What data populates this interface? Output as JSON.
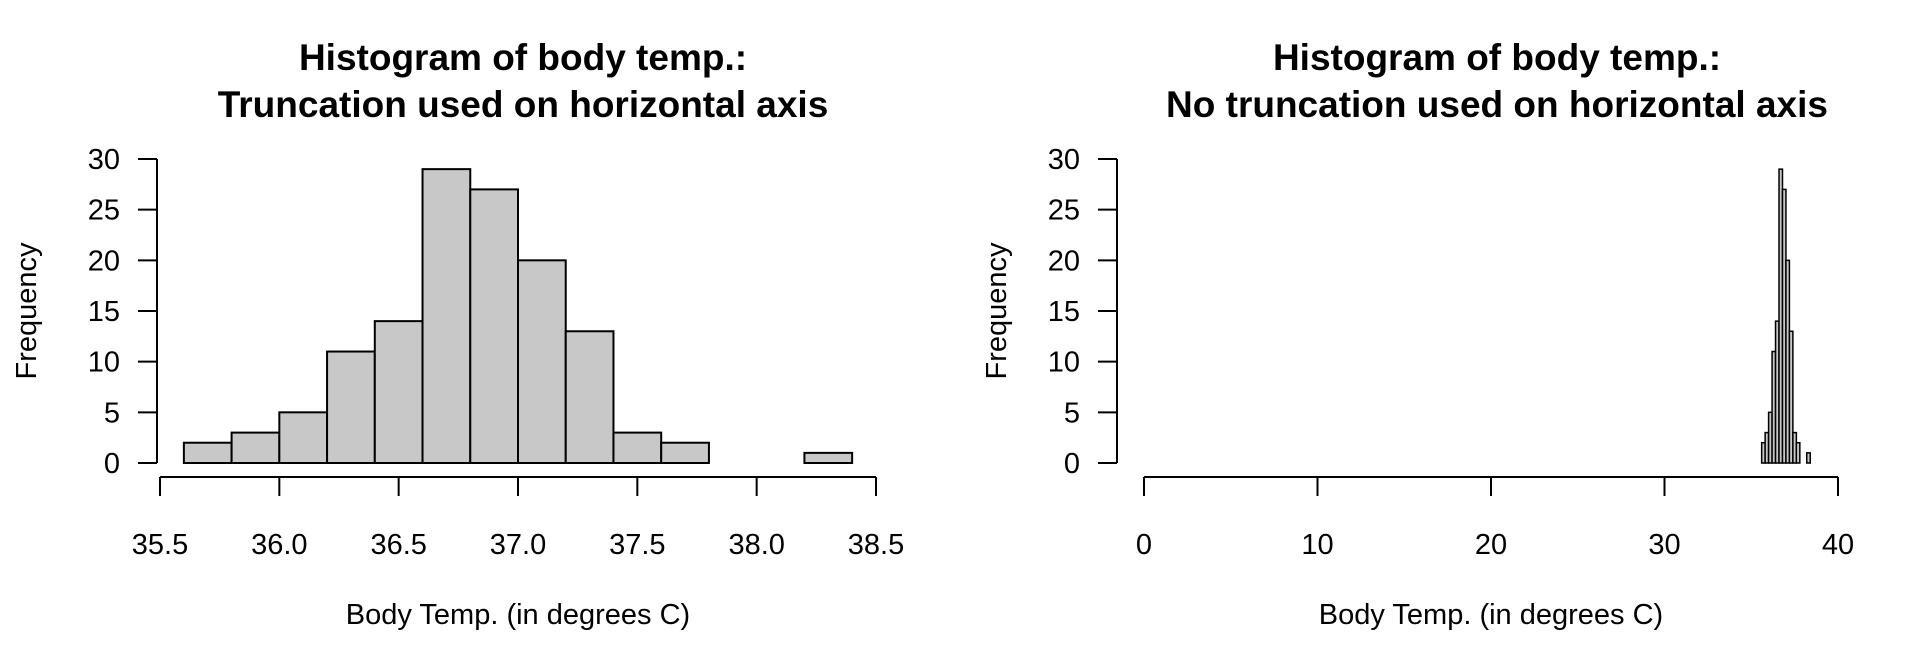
{
  "colors": {
    "bar_fill": "#c8c8c8",
    "bar_stroke": "#000000",
    "axis": "#000000",
    "background": "#ffffff"
  },
  "chart_data": [
    {
      "type": "bar",
      "subtype": "histogram",
      "title": "Histogram of body temp.:\nTruncation used on horizontal axis",
      "title_lines": [
        "Histogram of body temp.:",
        "Truncation used on horizontal axis"
      ],
      "xlabel": "Body Temp. (in degrees C)",
      "ylabel": "Frequency",
      "bin_edges": [
        35.6,
        35.8,
        36.0,
        36.2,
        36.4,
        36.6,
        36.8,
        37.0,
        37.2,
        37.4,
        37.6,
        37.8,
        38.0,
        38.2,
        38.4
      ],
      "values": [
        2,
        3,
        5,
        11,
        14,
        29,
        27,
        20,
        13,
        3,
        2,
        0,
        0,
        1
      ],
      "xlim": [
        35.5,
        38.5
      ],
      "ylim": [
        0,
        30
      ],
      "xticks": [
        35.5,
        36.0,
        36.5,
        37.0,
        37.5,
        38.0,
        38.5
      ],
      "xtick_labels": [
        "35.5",
        "36.0",
        "36.5",
        "37.0",
        "37.5",
        "38.0",
        "38.5"
      ],
      "yticks": [
        0,
        5,
        10,
        15,
        20,
        25,
        30
      ],
      "ytick_labels": [
        "0",
        "5",
        "10",
        "15",
        "20",
        "25",
        "30"
      ],
      "grid": false,
      "legend": null
    },
    {
      "type": "bar",
      "subtype": "histogram",
      "title": "Histogram of body temp.:\nNo truncation used on horizontal axis",
      "title_lines": [
        "Histogram of body temp.:",
        "No truncation used on horizontal axis"
      ],
      "xlabel": "Body Temp. (in degrees C)",
      "ylabel": "Frequency",
      "bin_edges": [
        35.6,
        35.8,
        36.0,
        36.2,
        36.4,
        36.6,
        36.8,
        37.0,
        37.2,
        37.4,
        37.6,
        37.8,
        38.0,
        38.2,
        38.4
      ],
      "values": [
        2,
        3,
        5,
        11,
        14,
        29,
        27,
        20,
        13,
        3,
        2,
        0,
        0,
        1
      ],
      "xlim": [
        0,
        40
      ],
      "ylim": [
        0,
        30
      ],
      "xticks": [
        0,
        10,
        20,
        30,
        40
      ],
      "xtick_labels": [
        "0",
        "10",
        "20",
        "30",
        "40"
      ],
      "yticks": [
        0,
        5,
        10,
        15,
        20,
        25,
        30
      ],
      "ytick_labels": [
        "0",
        "5",
        "10",
        "15",
        "20",
        "25",
        "30"
      ],
      "grid": false,
      "legend": null
    }
  ]
}
